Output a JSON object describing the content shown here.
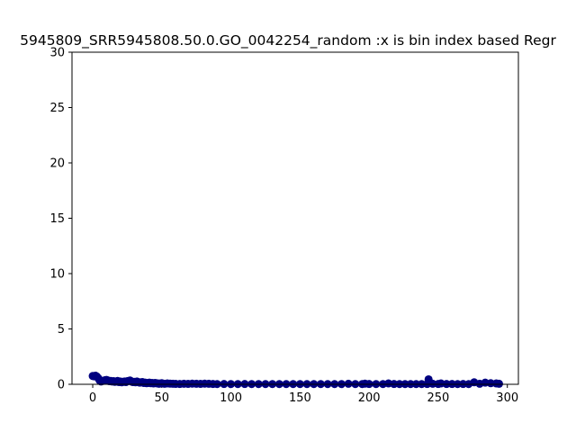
{
  "chart_data": {
    "type": "scatter",
    "title": "5945809_SRR5945808.50.0.GO_0042254_random :x is bin index based Regr",
    "xlabel": "",
    "ylabel": "",
    "xlim": [
      -15,
      308
    ],
    "ylim": [
      0,
      30
    ],
    "xticks": [
      0,
      50,
      100,
      150,
      200,
      250,
      300
    ],
    "yticks": [
      0,
      5,
      10,
      15,
      20,
      25,
      30
    ],
    "grid": false,
    "marker_color": "#000080",
    "series": [
      {
        "x": [
          0,
          1,
          2,
          3,
          4,
          5,
          6,
          7,
          8,
          9,
          10,
          11,
          12,
          13,
          14,
          15,
          16,
          17,
          18,
          19,
          20,
          21,
          22,
          23,
          24,
          25,
          26,
          27,
          28,
          29,
          30,
          31,
          32,
          33,
          34,
          35,
          36,
          37,
          38,
          39,
          40,
          41,
          42,
          43,
          44,
          45,
          46,
          47,
          48,
          49,
          50,
          52,
          54,
          56,
          58,
          60,
          63,
          66,
          69,
          72,
          75,
          78,
          81,
          84,
          87,
          90,
          95,
          100,
          105,
          110,
          115,
          120,
          125,
          130,
          135,
          140,
          145,
          150,
          155,
          160,
          165,
          170,
          175,
          180,
          185,
          190,
          195,
          197,
          200,
          205,
          210,
          214,
          218,
          222,
          226,
          230,
          234,
          238,
          242,
          243,
          246,
          250,
          252,
          256,
          260,
          264,
          268,
          272,
          276,
          280,
          284,
          288,
          292,
          294
        ],
        "y": [
          0.75,
          0.72,
          0.78,
          0.7,
          0.55,
          0.35,
          0.25,
          0.3,
          0.32,
          0.38,
          0.4,
          0.35,
          0.28,
          0.3,
          0.25,
          0.28,
          0.22,
          0.25,
          0.3,
          0.2,
          0.25,
          0.18,
          0.22,
          0.25,
          0.2,
          0.28,
          0.3,
          0.35,
          0.25,
          0.2,
          0.22,
          0.18,
          0.25,
          0.2,
          0.15,
          0.18,
          0.2,
          0.12,
          0.15,
          0.1,
          0.12,
          0.15,
          0.1,
          0.12,
          0.08,
          0.12,
          0.1,
          0.08,
          0.05,
          0.08,
          0.1,
          0.05,
          0.08,
          0.06,
          0.05,
          0.04,
          0.03,
          0.05,
          0.04,
          0.06,
          0.05,
          0.04,
          0.06,
          0.05,
          0.03,
          0.02,
          0.03,
          0.02,
          0.02,
          0.03,
          0.02,
          0.02,
          0.02,
          0.02,
          0.02,
          0.02,
          0.02,
          0.02,
          0.02,
          0.02,
          0.02,
          0.02,
          0.02,
          0.02,
          0.05,
          0.02,
          0.02,
          0.06,
          0.03,
          0.02,
          0.02,
          0.08,
          0.03,
          0.02,
          0.02,
          0.02,
          0.02,
          0.02,
          0.03,
          0.45,
          0.05,
          0.03,
          0.08,
          0.03,
          0.03,
          0.02,
          0.03,
          0.02,
          0.18,
          0.05,
          0.15,
          0.1,
          0.08,
          0.05
        ]
      }
    ]
  }
}
